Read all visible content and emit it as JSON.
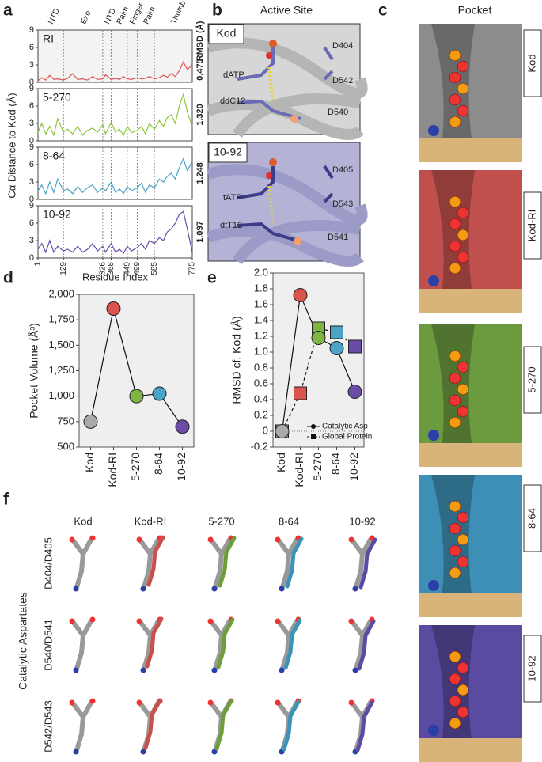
{
  "panel_labels": [
    "a",
    "b",
    "c",
    "d",
    "e",
    "f"
  ],
  "active_site": {
    "title": "Active Site",
    "panels": [
      {
        "label": "Kod",
        "residues": [
          "dATP",
          "ddC12",
          "D404",
          "D542",
          "D540"
        ]
      },
      {
        "label": "10-92",
        "residues": [
          "tATP",
          "dtT12",
          "D405",
          "D543",
          "D541"
        ]
      }
    ]
  },
  "pocket": {
    "title": "Pocket",
    "labels": [
      "Kod",
      "Kod-RI",
      "5-270",
      "8-64",
      "10-92"
    ]
  },
  "aspartates": {
    "title": "Catalytic Aspartates",
    "columns": [
      "Kod",
      "Kod-RI",
      "5-270",
      "8-64",
      "10-92"
    ],
    "rows": [
      "D404/D405",
      "D540/D541",
      "D542/D543"
    ]
  },
  "chart_data": [
    {
      "type": "line",
      "title": "RI",
      "annotation": "0.475",
      "y2label": "RMSD (Å)",
      "ylabel": "Cα Distance to Kod (Å)",
      "domains": [
        "NTD",
        "Exo",
        "NTD",
        "Palm",
        "Finger",
        "Palm",
        "Thumb"
      ],
      "color": "#d9534f",
      "x": [
        1,
        20,
        40,
        60,
        80,
        100,
        129,
        150,
        175,
        200,
        225,
        250,
        275,
        300,
        326,
        340,
        368,
        390,
        410,
        430,
        449,
        470,
        499,
        520,
        540,
        560,
        585,
        610,
        630,
        650,
        670,
        690,
        710,
        730,
        750,
        775
      ],
      "values": [
        0.3,
        0.8,
        0.4,
        1.2,
        0.5,
        0.6,
        0.4,
        0.7,
        1.5,
        0.5,
        0.6,
        0.4,
        1.0,
        0.5,
        0.6,
        1.3,
        0.5,
        0.7,
        0.5,
        1.0,
        0.6,
        0.5,
        0.8,
        0.6,
        0.7,
        1.0,
        0.6,
        0.8,
        1.2,
        0.9,
        1.5,
        1.0,
        2.0,
        3.5,
        2.2,
        3.0
      ],
      "xlim": [
        1,
        775
      ],
      "ylim": [
        0,
        9
      ],
      "yticks": [
        0,
        3,
        6,
        9
      ]
    },
    {
      "type": "line",
      "title": "5-270",
      "annotation": "1.320",
      "color": "#8cc63f",
      "x": [
        1,
        20,
        40,
        60,
        80,
        100,
        129,
        150,
        175,
        200,
        225,
        250,
        275,
        300,
        326,
        340,
        368,
        390,
        410,
        430,
        449,
        470,
        499,
        520,
        540,
        560,
        585,
        610,
        630,
        650,
        670,
        690,
        710,
        730,
        750,
        775
      ],
      "values": [
        1.5,
        3.0,
        1.2,
        2.5,
        1.0,
        3.8,
        1.5,
        2.0,
        1.2,
        2.5,
        1.0,
        1.8,
        2.2,
        1.5,
        2.8,
        1.2,
        3.2,
        1.5,
        2.0,
        1.0,
        2.5,
        1.4,
        1.8,
        2.5,
        1.2,
        3.0,
        2.0,
        3.5,
        2.5,
        4.0,
        4.5,
        3.0,
        6.0,
        8.0,
        5.0,
        2.5
      ],
      "xlim": [
        1,
        775
      ],
      "ylim": [
        0,
        9
      ],
      "yticks": [
        0,
        3,
        6,
        9
      ]
    },
    {
      "type": "line",
      "title": "8-64",
      "annotation": "1.248",
      "color": "#4ba3c7",
      "x": [
        1,
        20,
        40,
        60,
        80,
        100,
        129,
        150,
        175,
        200,
        225,
        250,
        275,
        300,
        326,
        340,
        368,
        390,
        410,
        430,
        449,
        470,
        499,
        520,
        540,
        560,
        585,
        610,
        630,
        650,
        670,
        690,
        710,
        730,
        750,
        775
      ],
      "values": [
        1.5,
        2.5,
        1.0,
        3.0,
        1.2,
        3.5,
        1.5,
        1.8,
        1.0,
        2.2,
        1.2,
        2.0,
        2.5,
        1.2,
        2.0,
        1.5,
        3.0,
        1.2,
        1.8,
        1.0,
        2.2,
        1.5,
        2.0,
        2.8,
        1.2,
        2.5,
        2.0,
        3.5,
        3.0,
        4.0,
        4.5,
        3.5,
        5.5,
        7.0,
        5.0,
        6.5
      ],
      "xlim": [
        1,
        775
      ],
      "ylim": [
        0,
        9
      ],
      "yticks": [
        0,
        3,
        6,
        9
      ]
    },
    {
      "type": "line",
      "title": "10-92",
      "annotation": "1.097",
      "color": "#6a4ca8",
      "xlabel": "Residue Index",
      "x": [
        1,
        20,
        40,
        60,
        80,
        100,
        129,
        150,
        175,
        200,
        225,
        250,
        275,
        300,
        326,
        340,
        368,
        390,
        410,
        430,
        449,
        470,
        499,
        520,
        540,
        560,
        585,
        610,
        630,
        650,
        670,
        690,
        710,
        730,
        750,
        775
      ],
      "values": [
        1.5,
        2.5,
        1.0,
        3.0,
        1.0,
        2.0,
        1.2,
        1.5,
        1.0,
        2.0,
        1.0,
        1.5,
        2.5,
        1.2,
        2.0,
        1.0,
        2.5,
        1.0,
        1.5,
        0.8,
        2.0,
        1.2,
        1.8,
        2.5,
        1.5,
        3.0,
        2.5,
        3.5,
        3.0,
        4.5,
        5.0,
        6.0,
        7.5,
        8.0,
        5.0,
        1.0
      ],
      "xlim": [
        1,
        775
      ],
      "xticks": [
        1,
        129,
        326,
        368,
        449,
        499,
        585,
        775
      ],
      "ylim": [
        0,
        9
      ],
      "yticks": [
        0,
        3,
        6,
        9
      ]
    },
    {
      "type": "dotline",
      "ylabel": "Pocket Volume (Å³)",
      "categories": [
        "Kod",
        "Kod-RI",
        "5-270",
        "8-64",
        "10-92"
      ],
      "values": [
        750,
        1860,
        1000,
        1025,
        700
      ],
      "point_colors": [
        "#aaaaaa",
        "#d9534f",
        "#7fb542",
        "#4ba3c7",
        "#6a4ca8"
      ],
      "ylim": [
        500,
        2000
      ],
      "yticks": [
        500,
        750,
        {
          "value": 1000,
          "label": "1,000"
        },
        {
          "value": 1250,
          "label": "1,250"
        },
        {
          "value": 1500,
          "label": "1,500"
        },
        {
          "value": 1750,
          "label": "1,750"
        },
        {
          "value": 2000,
          "label": "2,000"
        }
      ]
    },
    {
      "type": "dotline",
      "ylabel": "RMSD cf. Kod (Å)",
      "categories": [
        "Kod",
        "Kod-RI",
        "5-270",
        "8-64",
        "10-92"
      ],
      "point_colors": [
        "#aaaaaa",
        "#d9534f",
        "#7fb542",
        "#4ba3c7",
        "#6a4ca8"
      ],
      "series": [
        {
          "name": "Catalytic Asp",
          "marker": "circle",
          "dash": false,
          "values": [
            0,
            1.72,
            1.18,
            1.05,
            0.5
          ]
        },
        {
          "name": "Global Protein",
          "marker": "square",
          "dash": true,
          "values": [
            0,
            0.48,
            1.3,
            1.25,
            1.07
          ]
        }
      ],
      "ylim": [
        -0.2,
        2.0
      ],
      "yticks": [
        -0.2,
        0,
        0.2,
        0.4,
        0.6,
        0.8,
        {
          "value": 1,
          "label": "1.0"
        },
        1.2,
        1.4,
        1.6,
        1.8,
        {
          "value": 2,
          "label": "2.0"
        }
      ],
      "legend": "lower right"
    }
  ]
}
